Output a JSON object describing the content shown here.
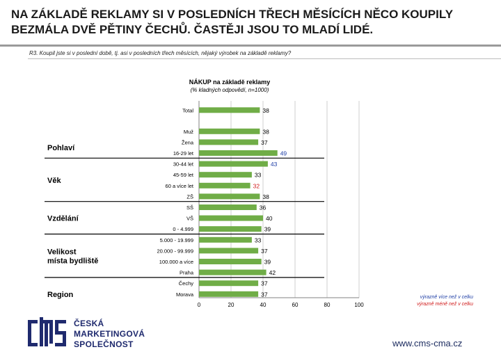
{
  "headline": {
    "line1": "NA ZÁKLADĚ REKLAMY SI V POSLEDNÍCH TŘECH MĚSÍCÍCH NĚCO KOUPILY",
    "line2": "BEZMÁLA DVĚ PĚTINY ČECHŮ. ČASTĚJI JSOU TO MLADÍ LIDÉ."
  },
  "question": "R3. Koupil jste si v poslední době, tj. asi v posledních třech měsících, nějaký výrobek na základě reklamy?",
  "legend": {
    "above": "výrazně více než v celku",
    "below": "výrazně méně než v celku"
  },
  "brand": {
    "line1": "ČESKÁ",
    "line2": "MARKETINGOVÁ",
    "line3": "SPOLEČNOST",
    "url": "www.cms-cma.cz"
  },
  "colors": {
    "bar": "#70ad47",
    "above": "#1f3fa6",
    "below": "#d01a1a",
    "brand": "#1f2a6e"
  },
  "chart_data": {
    "type": "bar",
    "orientation": "horizontal",
    "title": "NÁKUP na základě reklamy",
    "subtitle": "(% kladných odpovědí, n=1000)",
    "xlim": [
      0,
      100
    ],
    "xticks": [
      "0",
      "20",
      "40",
      "60",
      "80",
      "100"
    ],
    "grid": true,
    "groups": [
      {
        "name": "",
        "items": [
          {
            "label": "Total",
            "value": 38,
            "flag": "none"
          }
        ]
      },
      {
        "name": "Pohlaví",
        "items": [
          {
            "label": "Muž",
            "value": 38,
            "flag": "none"
          },
          {
            "label": "Žena",
            "value": 37,
            "flag": "none"
          }
        ]
      },
      {
        "name": "Věk",
        "items": [
          {
            "label": "16-29 let",
            "value": 49,
            "flag": "above"
          },
          {
            "label": "30-44 let",
            "value": 43,
            "flag": "above"
          },
          {
            "label": "45-59 let",
            "value": 33,
            "flag": "none"
          },
          {
            "label": "60 a více let",
            "value": 32,
            "flag": "below"
          }
        ]
      },
      {
        "name": "Vzdělání",
        "items": [
          {
            "label": "ZŠ",
            "value": 38,
            "flag": "none"
          },
          {
            "label": "SŠ",
            "value": 36,
            "flag": "none"
          },
          {
            "label": "VŠ",
            "value": 40,
            "flag": "none"
          }
        ]
      },
      {
        "name": "Velikost\nmísta bydliště",
        "items": [
          {
            "label": "0 - 4.999",
            "value": 39,
            "flag": "none"
          },
          {
            "label": "5.000 - 19.999",
            "value": 33,
            "flag": "none"
          },
          {
            "label": "20.000 - 99.999",
            "value": 37,
            "flag": "none"
          },
          {
            "label": "100.000 a více",
            "value": 39,
            "flag": "none"
          }
        ]
      },
      {
        "name": "Region",
        "items": [
          {
            "label": "Praha",
            "value": 42,
            "flag": "none"
          },
          {
            "label": "Čechy",
            "value": 37,
            "flag": "none"
          },
          {
            "label": "Morava",
            "value": 37,
            "flag": "none"
          }
        ]
      }
    ]
  }
}
